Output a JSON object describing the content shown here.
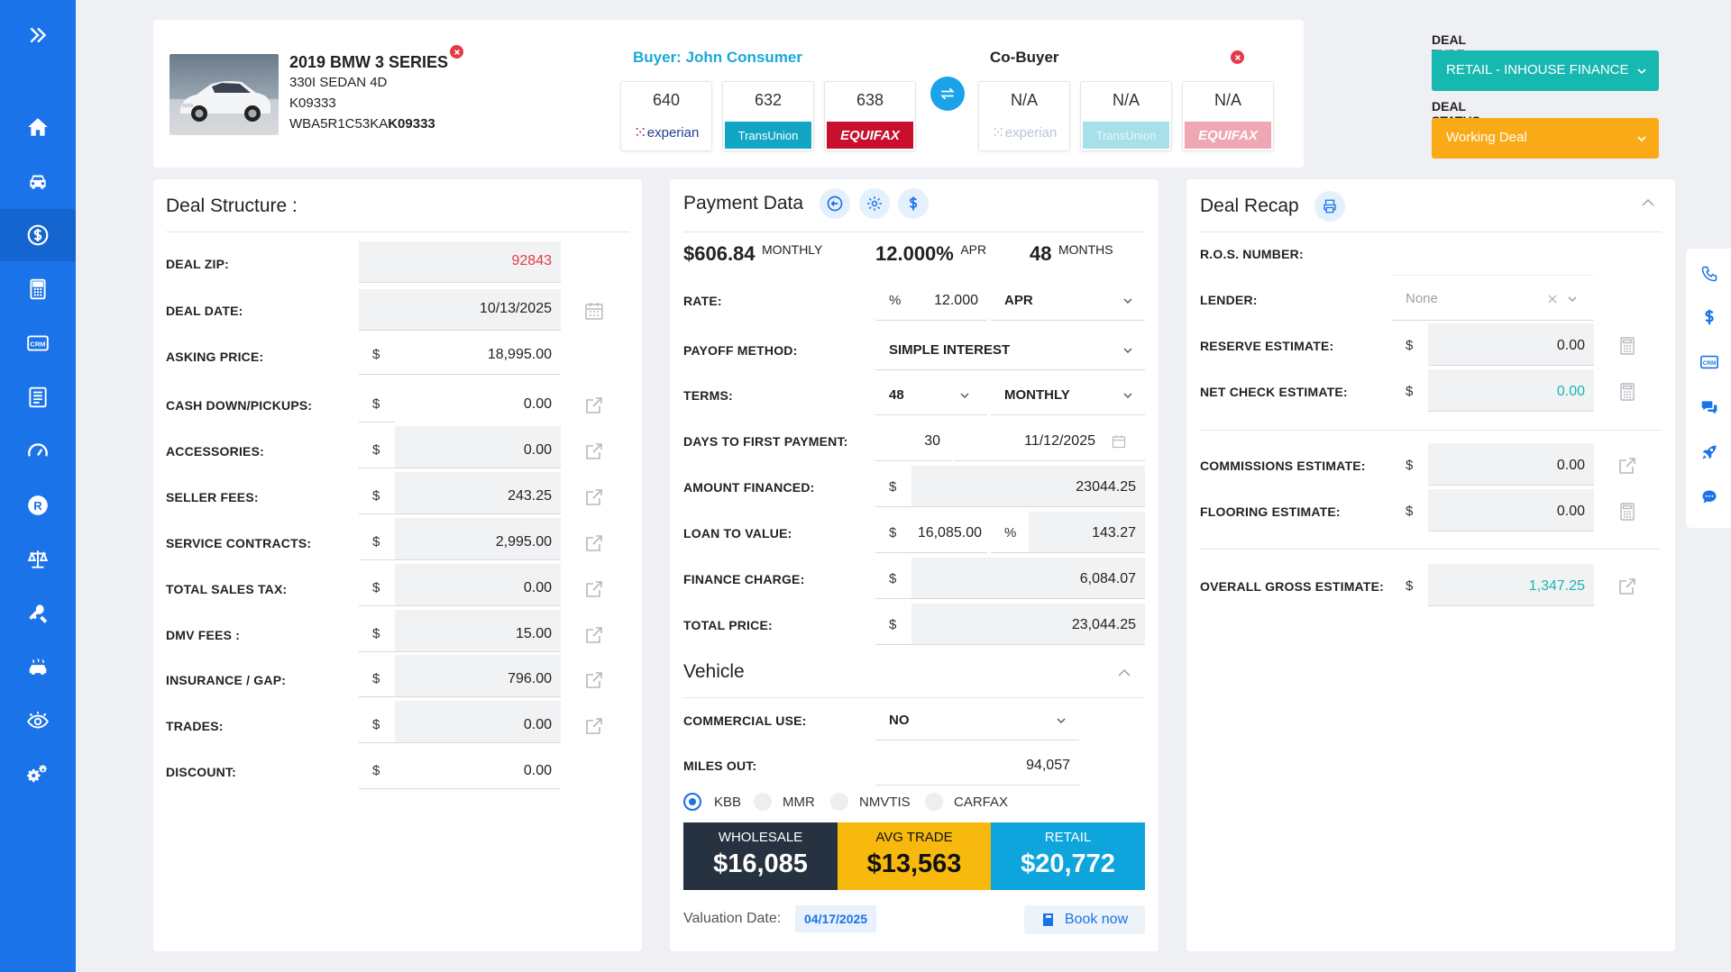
{
  "sidebar": {
    "items": [
      {
        "icon": "chevrons-right-icon"
      },
      {
        "icon": "home-icon"
      },
      {
        "icon": "car-icon"
      },
      {
        "icon": "dollar-circle-icon"
      },
      {
        "icon": "calculator-icon"
      },
      {
        "icon": "crm-icon"
      },
      {
        "icon": "document-list-icon"
      },
      {
        "icon": "speedometer-icon"
      },
      {
        "icon": "registered-icon"
      },
      {
        "icon": "scale-icon"
      },
      {
        "icon": "tools-icon"
      },
      {
        "icon": "car-wash-icon"
      },
      {
        "icon": "eye-icon"
      },
      {
        "icon": "settings-gears-icon"
      }
    ],
    "crm_text": "CRM",
    "registered_text": "R"
  },
  "vehicle_header": {
    "title": "2019 BMW 3 SERIES",
    "trim": "330I SEDAN 4D",
    "stock": "K09333",
    "vin_prefix": "WBA5R1C53KA",
    "vin_suffix": "K09333"
  },
  "buyer": {
    "label": "Buyer: John Consumer",
    "scores": [
      {
        "score": "640",
        "bureau": "experian"
      },
      {
        "score": "632",
        "bureau": "TransUnion"
      },
      {
        "score": "638",
        "bureau": "EQUIFAX"
      }
    ]
  },
  "cobuyer": {
    "label": "Co-Buyer",
    "scores": [
      {
        "score": "N/A",
        "bureau": "experian"
      },
      {
        "score": "N/A",
        "bureau": "TransUnion"
      },
      {
        "score": "N/A",
        "bureau": "EQUIFAX"
      }
    ]
  },
  "deal_type": {
    "label": "DEAL TYPE",
    "value": "RETAIL - INHOUSE FINANCE"
  },
  "deal_status": {
    "label": "DEAL STATUS",
    "value": "Working Deal"
  },
  "deal_structure": {
    "title": "Deal Structure :",
    "rows": [
      {
        "label": "DEAL ZIP:",
        "value": "92843"
      },
      {
        "label": "DEAL DATE:",
        "value": "10/13/2025"
      },
      {
        "label": "ASKING PRICE:",
        "value": "18,995.00"
      },
      {
        "label": "CASH DOWN/PICKUPS:",
        "value": "0.00"
      },
      {
        "label": "ACCESSORIES:",
        "value": "0.00"
      },
      {
        "label": "SELLER FEES:",
        "value": "243.25"
      },
      {
        "label": "SERVICE CONTRACTS:",
        "value": "2,995.00"
      },
      {
        "label": "TOTAL SALES TAX:",
        "value": "0.00"
      },
      {
        "label": "DMV FEES :",
        "value": "15.00"
      },
      {
        "label": "INSURANCE / GAP:",
        "value": "796.00"
      },
      {
        "label": "TRADES:",
        "value": "0.00"
      },
      {
        "label": "DISCOUNT:",
        "value": "0.00"
      }
    ],
    "currency": "$"
  },
  "payment": {
    "title": "Payment Data",
    "monthly_amount": "$606.84",
    "monthly_label": "MONTHLY",
    "apr_amount": "12.000%",
    "apr_label": "APR",
    "months_amount": "48",
    "months_label": "MONTHS",
    "rate_label": "RATE:",
    "rate_pct_sign": "%",
    "rate_value": "12.000",
    "rate_type": "APR",
    "payoff_label": "PAYOFF METHOD:",
    "payoff_value": "SIMPLE INTEREST",
    "terms_label": "TERMS:",
    "terms_value": "48",
    "terms_freq": "MONTHLY",
    "days_label": "DAYS TO FIRST PAYMENT:",
    "days_value": "30",
    "days_date": "11/12/2025",
    "financed_label": "AMOUNT FINANCED:",
    "financed_value": "23044.25",
    "ltv_label": "LOAN TO VALUE:",
    "ltv_value": "16,085.00",
    "ltv_pct_sign": "%",
    "ltv_pct": "143.27",
    "charge_label": "FINANCE CHARGE:",
    "charge_value": "6,084.07",
    "total_label": "TOTAL PRICE:",
    "total_value": "23,044.25",
    "currency": "$"
  },
  "vehicle": {
    "title": "Vehicle",
    "commercial_label": "COMMERCIAL USE:",
    "commercial_value": "NO",
    "miles_label": "MILES OUT:",
    "miles_value": "94,057",
    "sources": [
      "KBB",
      "MMR",
      "NMVTIS",
      "CARFAX"
    ],
    "selected_source": "KBB",
    "valuation": [
      {
        "label": "WHOLESALE",
        "value": "$16,085",
        "color": "#26323f",
        "text": "#ffffff"
      },
      {
        "label": "AVG TRADE",
        "value": "$13,563",
        "color": "#f8b90e",
        "text": "#111111"
      },
      {
        "label": "RETAIL",
        "value": "$20,772",
        "color": "#0ea5dc",
        "text": "#ffffff"
      }
    ],
    "valuation_date_label": "Valuation Date:",
    "valuation_date": "04/17/2025",
    "book_now": "Book now"
  },
  "recap": {
    "title": "Deal Recap",
    "ros_label": "R.O.S. NUMBER:",
    "lender_label": "LENDER:",
    "lender_placeholder": "None",
    "reserve_label": "RESERVE ESTIMATE:",
    "reserve_value": "0.00",
    "netcheck_label": "NET CHECK ESTIMATE:",
    "netcheck_value": "0.00",
    "commissions_label": "COMMISSIONS ESTIMATE:",
    "commissions_value": "0.00",
    "flooring_label": "FLOORING ESTIMATE:",
    "flooring_value": "0.00",
    "gross_label": "OVERALL GROSS ESTIMATE:",
    "gross_value": "1,347.25",
    "currency": "$"
  },
  "right_toolbar": {
    "icons": [
      "phone-icon",
      "dollar-icon",
      "crm-icon",
      "chat-bubbles-icon",
      "rocket-icon",
      "message-icon"
    ],
    "crm_text": "CRM"
  },
  "colors": {
    "primary": "#1a73e8",
    "teal": "#17b8b0",
    "orange": "#fbaa17",
    "red": "#e53945",
    "zip_red": "#e53945",
    "teal_text": "#17b8b0"
  }
}
